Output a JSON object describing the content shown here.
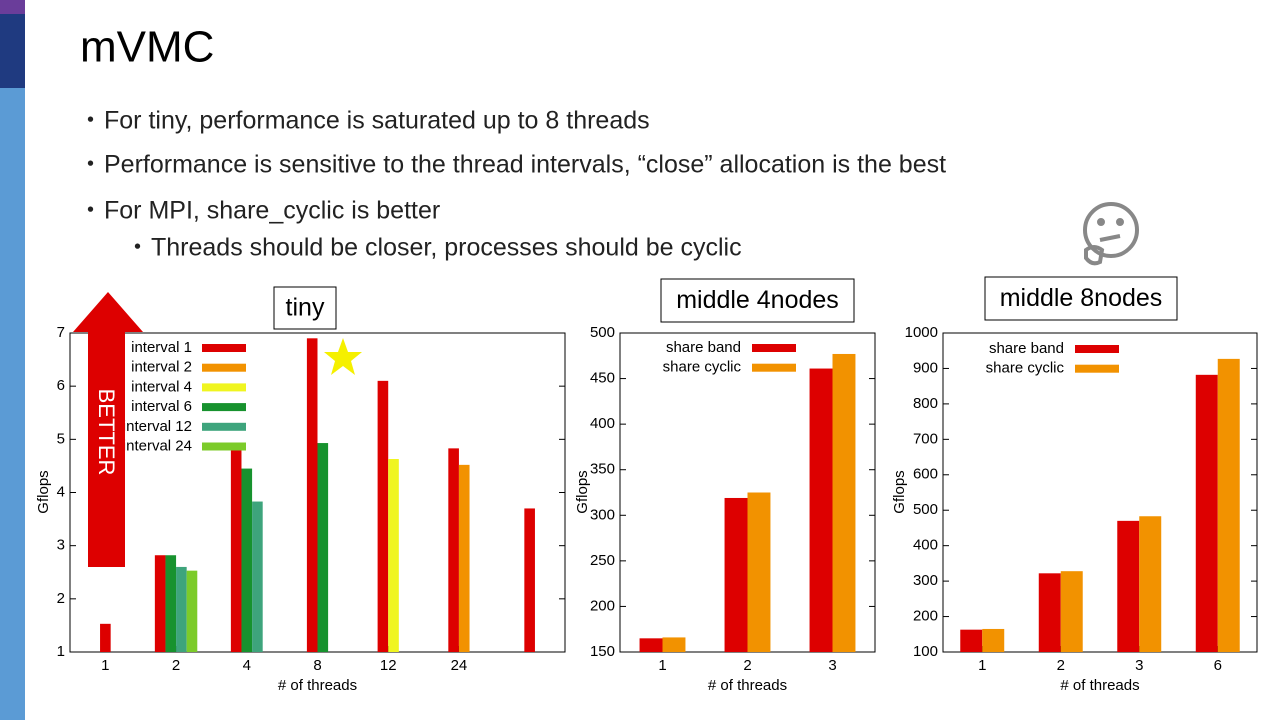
{
  "title": "mVMC",
  "bullets": [
    "For tiny, performance is saturated up to 8 threads",
    "Performance is sensitive to the thread intervals, “close” allocation is the best",
    "For MPI, share_cyclic is better"
  ],
  "sub_bullets": [
    "Threads should be closer, processes should be cyclic"
  ],
  "chart_data": [
    {
      "type": "bar",
      "title": "tiny",
      "x_label": "# of threads",
      "y_label": "Gflops",
      "annotation": "BETTER",
      "categories": [
        "1",
        "2",
        "4",
        "8",
        "12",
        "24",
        null
      ],
      "series": [
        {
          "name": "interval  1",
          "color": "#dd0000",
          "values": [
            1.53,
            2.82,
            4.84,
            6.9,
            6.1,
            4.83,
            3.7
          ]
        },
        {
          "name": "interval  2",
          "color": "#f29200",
          "values": [
            null,
            null,
            null,
            null,
            null,
            4.52,
            null
          ]
        },
        {
          "name": "interval  4",
          "color": "#f0f520",
          "values": [
            null,
            null,
            null,
            null,
            4.63,
            null,
            null
          ]
        },
        {
          "name": "interval  6",
          "color": "#17922e",
          "values": [
            null,
            2.82,
            4.45,
            4.93,
            null,
            null,
            null
          ]
        },
        {
          "name": "interval  12",
          "color": "#3ea47c",
          "values": [
            null,
            2.6,
            3.83,
            null,
            null,
            null,
            null
          ]
        },
        {
          "name": "interval  24",
          "color": "#7ccb2a",
          "values": [
            null,
            2.53,
            null,
            null,
            null,
            null,
            null
          ]
        }
      ],
      "ylim": [
        1,
        7
      ],
      "yticks": [
        1,
        2,
        3,
        4,
        5,
        6,
        7
      ]
    },
    {
      "type": "bar",
      "title": "middle 4nodes",
      "x_label": "# of threads",
      "y_label": "Gflops",
      "categories": [
        "1",
        "2",
        "3"
      ],
      "series": [
        {
          "name": "share band",
          "color": "#dd0000",
          "values": [
            165,
            319,
            461
          ]
        },
        {
          "name": "share cyclic",
          "color": "#f29200",
          "values": [
            166,
            325,
            477
          ]
        }
      ],
      "ylim": [
        150,
        500
      ],
      "yticks": [
        150,
        200,
        250,
        300,
        350,
        400,
        450,
        500
      ]
    },
    {
      "type": "bar",
      "title": "middle 8nodes",
      "x_label": "# of threads",
      "y_label": "Gflops",
      "categories": [
        "1",
        "2",
        "3",
        "6"
      ],
      "series": [
        {
          "name": "share band",
          "color": "#dd0000",
          "values": [
            163,
            322,
            470,
            882
          ]
        },
        {
          "name": "share cyclic",
          "color": "#f29200",
          "values": [
            165,
            328,
            483,
            927
          ]
        }
      ],
      "ylim": [
        100,
        1000
      ],
      "yticks": [
        100,
        200,
        300,
        400,
        500,
        600,
        700,
        800,
        900,
        1000
      ]
    }
  ]
}
